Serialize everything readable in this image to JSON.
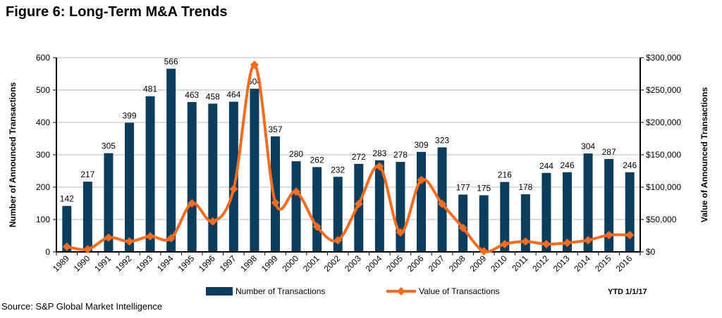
{
  "title": "Figure 6: Long-Term M&A Trends",
  "source": "Source: S&P Global Market Intelligence",
  "note": "YTD 1/1/17",
  "colors": {
    "bars": "#0d3d5c",
    "line": "#f26c22",
    "grid": "#bbbbbb"
  },
  "chart_data": {
    "type": "bar+line",
    "categories": [
      "1989",
      "1990",
      "1991",
      "1992",
      "1993",
      "1994",
      "1995",
      "1996",
      "1997",
      "1998",
      "1999",
      "2000",
      "2001",
      "2002",
      "2003",
      "2004",
      "2005",
      "2006",
      "2007",
      "2008",
      "2009",
      "2010",
      "2011",
      "2012",
      "2013",
      "2014",
      "2015",
      "2016"
    ],
    "series": [
      {
        "name": "Number of Transactions",
        "type": "bar",
        "axis": "left",
        "values": [
          142,
          217,
          305,
          399,
          481,
          566,
          463,
          458,
          464,
          504,
          357,
          280,
          262,
          232,
          272,
          283,
          278,
          309,
          323,
          177,
          175,
          216,
          178,
          244,
          246,
          304,
          287,
          246
        ]
      },
      {
        "name": "Value of Transactions",
        "type": "line",
        "axis": "right",
        "values": [
          8000,
          4000,
          22000,
          16000,
          24000,
          21000,
          75000,
          47000,
          97000,
          289000,
          76000,
          93000,
          39000,
          18000,
          74000,
          132000,
          30000,
          111000,
          74000,
          37000,
          1000,
          12000,
          16000,
          12000,
          14000,
          18000,
          26000,
          26000
        ]
      }
    ],
    "ylabel": "Number of Announced Transactions",
    "y2label": "Value of Announced  Transactions",
    "ylim": [
      0,
      600
    ],
    "yticks": [
      "0",
      "100",
      "200",
      "300",
      "400",
      "500",
      "600"
    ],
    "y2lim": [
      0,
      300000
    ],
    "y2ticks": [
      "$0",
      "$50,000",
      "$100,000",
      "$150,000",
      "$200,000",
      "$250,000",
      "$300,000"
    ],
    "grid": true,
    "legend": "bottom"
  }
}
